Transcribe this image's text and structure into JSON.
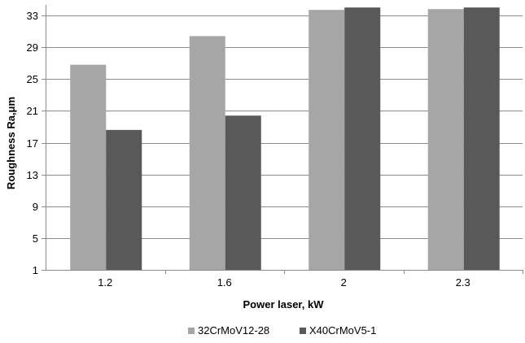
{
  "chart_data": {
    "type": "bar",
    "title": "",
    "xlabel": "Power laser, kW",
    "ylabel": "Roughness Ra,μm",
    "categories": [
      "1.2",
      "1.6",
      "2",
      "2.3"
    ],
    "series": [
      {
        "name": "32CrMoV12-28",
        "values": [
          26.8,
          30.4,
          33.7,
          33.8
        ],
        "color": "#a6a6a6"
      },
      {
        "name": "X40CrMoV5-1",
        "values": [
          18.6,
          20.4,
          34.0,
          34.0
        ],
        "color": "#595959"
      }
    ],
    "ylim": [
      1,
      34
    ],
    "yticks": [
      "1",
      "5",
      "9",
      "13",
      "17",
      "21",
      "25",
      "29",
      "33"
    ],
    "grid": true,
    "legend": "bottom"
  }
}
